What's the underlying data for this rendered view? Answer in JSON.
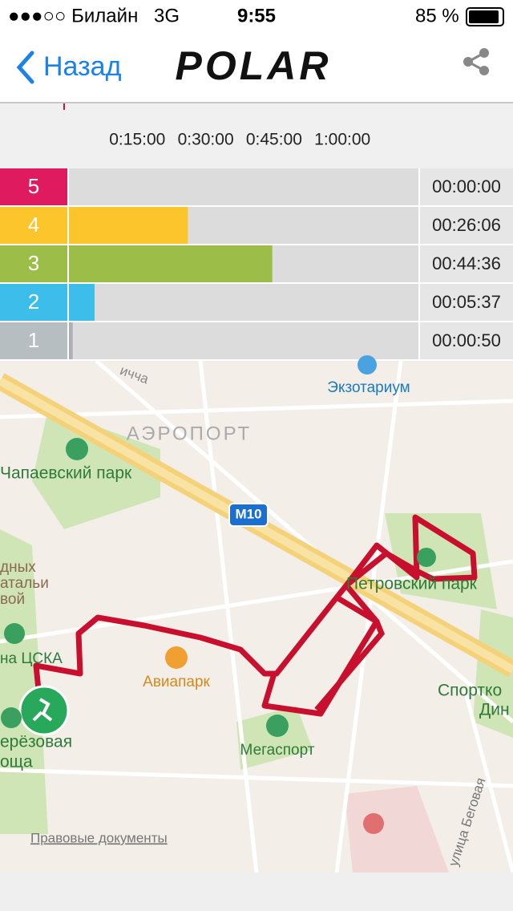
{
  "status_bar": {
    "carrier": "●●●○○ Билайн",
    "network": "3G",
    "time": "9:55",
    "battery": "85 %"
  },
  "nav": {
    "back": "Назад",
    "logo": "POLAR"
  },
  "chart_data": {
    "type": "bar",
    "orientation": "horizontal",
    "categories": [
      "5",
      "4",
      "3",
      "2",
      "1"
    ],
    "values": [
      0,
      1566,
      2676,
      337,
      50
    ],
    "value_labels": [
      "00:00:00",
      "00:26:06",
      "00:44:36",
      "00:05:37",
      "00:00:50"
    ],
    "colors": [
      "#df1a5f",
      "#fcc52b",
      "#9cbd47",
      "#3dbde9",
      "#b7bec1"
    ],
    "bar_colors": [
      "#df1a5f",
      "#fcc52b",
      "#9cbd47",
      "#3dbde9",
      "#aab0b3"
    ],
    "xlim": [
      0,
      4600
    ],
    "xticks": [
      {
        "value": 900,
        "label": "0:15:00"
      },
      {
        "value": 1800,
        "label": "0:30:00"
      },
      {
        "value": 2700,
        "label": "0:45:00"
      },
      {
        "value": 3600,
        "label": "1:00:00"
      }
    ],
    "grid": false
  },
  "map": {
    "labels": [
      "Экзотариум",
      "АЭРОПОРТ",
      "Чапаевский парк",
      "M10",
      "Петровский парк",
      "Авиапарк",
      "Мегаспорт",
      "Спортко",
      "Дин",
      "на ЦСКА",
      "ерёзовая",
      "оща",
      "дных",
      "атальи",
      "вой",
      "ичча",
      "улица Беговая"
    ],
    "legal": "Правовые документы"
  }
}
